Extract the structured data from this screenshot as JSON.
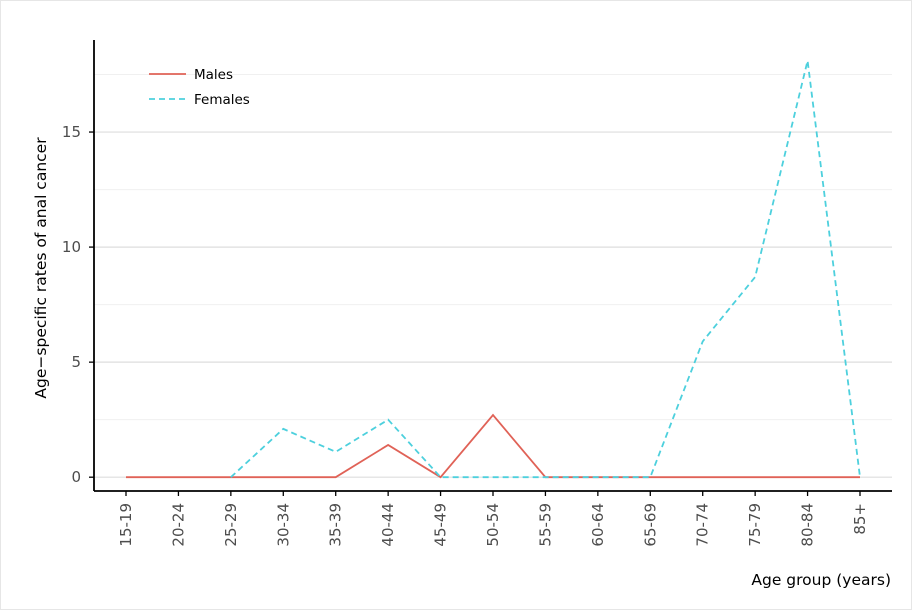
{
  "chart_data": {
    "type": "line",
    "categories": [
      "15-19",
      "20-24",
      "25-29",
      "30-34",
      "35-39",
      "40-44",
      "45-49",
      "50-54",
      "55-59",
      "60-64",
      "65-69",
      "70-74",
      "75-79",
      "80-84",
      "85+"
    ],
    "series": [
      {
        "name": "Males",
        "color": "#e06257",
        "dash": "solid",
        "values": [
          0,
          0,
          0,
          0,
          0,
          1.4,
          0,
          2.7,
          0,
          0,
          0,
          0,
          0,
          0,
          0
        ]
      },
      {
        "name": "Females",
        "color": "#4dd0dd",
        "dash": "dashed",
        "values": [
          null,
          null,
          0,
          2.1,
          1.1,
          2.5,
          0,
          0,
          0,
          0,
          0,
          5.9,
          8.7,
          18.1,
          0
        ]
      }
    ],
    "y_ticks": [
      "0",
      "5",
      "10",
      "15"
    ],
    "ylim": [
      -0.6,
      19
    ],
    "xlabel": "Age group (years)",
    "ylabel": "Age−specific rates of anal cancer",
    "grid": true,
    "legend_position": "top-left"
  }
}
